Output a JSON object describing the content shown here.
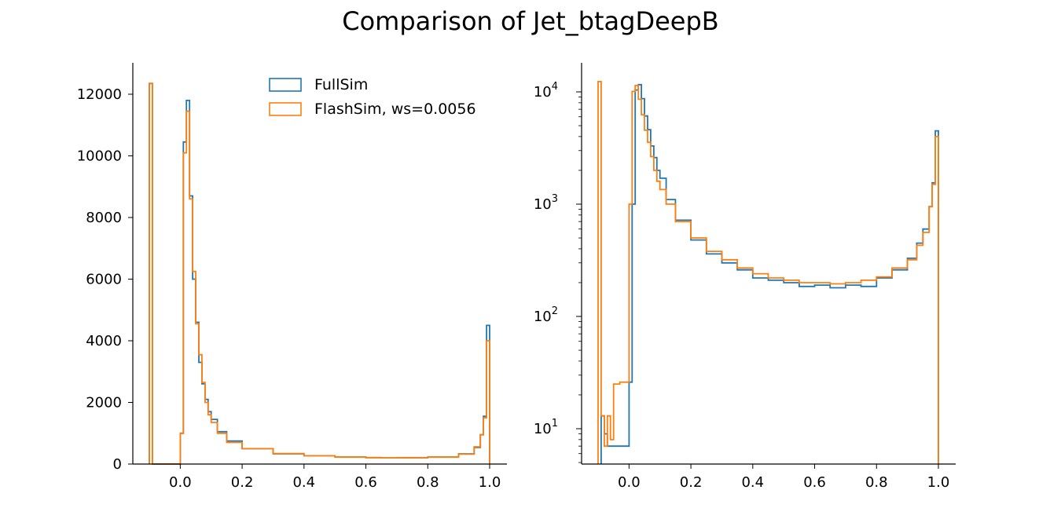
{
  "figure_title": "Comparison of Jet_btagDeepB",
  "colors": {
    "fullsim": "#1f77b4",
    "flashsim": "#ff7f0e"
  },
  "chart_data": [
    {
      "type": "histogram-step",
      "panel": "linear",
      "title": "",
      "xlabel": "",
      "ylabel": "",
      "xlim": [
        -0.1,
        1.0
      ],
      "ylim": [
        0,
        12400
      ],
      "xticks": [
        0.0,
        0.2,
        0.4,
        0.6,
        0.8,
        1.0
      ],
      "xtick_labels": [
        "0.0",
        "0.2",
        "0.4",
        "0.6",
        "0.8",
        "1.0"
      ],
      "yticks": [
        0,
        2000,
        4000,
        6000,
        8000,
        10000,
        12000
      ],
      "ytick_labels": [
        "0",
        "2000",
        "4000",
        "6000",
        "8000",
        "10000",
        "12000"
      ],
      "legend_position": "top-right",
      "series": [
        {
          "name": "FullSim",
          "key": "fullsim",
          "x": [
            -0.1,
            -0.09,
            0.0,
            0.01,
            0.02,
            0.03,
            0.04,
            0.05,
            0.06,
            0.07,
            0.08,
            0.09,
            0.1,
            0.12,
            0.15,
            0.2,
            0.3,
            0.4,
            0.5,
            0.6,
            0.65,
            0.7,
            0.8,
            0.9,
            0.95,
            0.97,
            0.98,
            0.99,
            1.0
          ],
          "y": [
            12350,
            0,
            1000,
            10450,
            11800,
            8700,
            6000,
            4600,
            3300,
            2600,
            2100,
            1700,
            1450,
            1050,
            750,
            500,
            330,
            270,
            230,
            210,
            200,
            205,
            230,
            330,
            540,
            950,
            1550,
            4500,
            0
          ]
        },
        {
          "name": "FlashSim, ws=0.0056",
          "key": "flashsim",
          "x": [
            -0.1,
            -0.09,
            0.0,
            0.01,
            0.02,
            0.03,
            0.04,
            0.05,
            0.06,
            0.07,
            0.08,
            0.09,
            0.1,
            0.12,
            0.15,
            0.2,
            0.3,
            0.4,
            0.5,
            0.6,
            0.65,
            0.7,
            0.8,
            0.9,
            0.95,
            0.97,
            0.98,
            0.99,
            1.0
          ],
          "y": [
            12350,
            0,
            1000,
            10100,
            11450,
            8600,
            6250,
            4550,
            3550,
            2650,
            2000,
            1600,
            1350,
            1000,
            700,
            500,
            340,
            270,
            225,
            210,
            200,
            210,
            225,
            320,
            560,
            950,
            1500,
            4000,
            0
          ]
        }
      ]
    },
    {
      "type": "histogram-step",
      "panel": "log",
      "title": "",
      "xlabel": "",
      "ylabel": "",
      "yscale": "log",
      "xlim": [
        -0.1,
        1.0
      ],
      "ylim": [
        5,
        20000
      ],
      "xticks": [
        0.0,
        0.2,
        0.4,
        0.6,
        0.8,
        1.0
      ],
      "xtick_labels": [
        "0.0",
        "0.2",
        "0.4",
        "0.6",
        "0.8",
        "1.0"
      ],
      "yticks": [
        10,
        100,
        1000,
        10000
      ],
      "ytick_labels": [
        {
          "base": "10",
          "exp": "1"
        },
        {
          "base": "10",
          "exp": "2"
        },
        {
          "base": "10",
          "exp": "3"
        },
        {
          "base": "10",
          "exp": "4"
        }
      ],
      "series": [
        {
          "name": "FullSim",
          "key": "fullsim",
          "x": [
            -0.09,
            -0.08,
            -0.07,
            0.0,
            0.01,
            0.02,
            0.03,
            0.04,
            0.05,
            0.06,
            0.07,
            0.08,
            0.09,
            0.1,
            0.12,
            0.15,
            0.2,
            0.25,
            0.3,
            0.35,
            0.4,
            0.45,
            0.5,
            0.55,
            0.6,
            0.65,
            0.7,
            0.75,
            0.8,
            0.85,
            0.9,
            0.93,
            0.95,
            0.97,
            0.98,
            0.99,
            1.0
          ],
          "y": [
            13,
            9,
            7,
            26,
            1000,
            10400,
            11600,
            8700,
            6100,
            4600,
            3300,
            2600,
            2000,
            1700,
            1100,
            720,
            480,
            360,
            300,
            260,
            220,
            210,
            200,
            185,
            190,
            180,
            190,
            185,
            220,
            260,
            330,
            450,
            600,
            950,
            1550,
            4500,
            0
          ]
        },
        {
          "name": "FlashSim, ws=0.0056",
          "key": "flashsim",
          "x": [
            -0.1,
            -0.09,
            -0.08,
            -0.07,
            -0.06,
            -0.05,
            -0.04,
            -0.03,
            0.0,
            0.01,
            0.02,
            0.03,
            0.04,
            0.05,
            0.06,
            0.07,
            0.08,
            0.09,
            0.1,
            0.12,
            0.15,
            0.2,
            0.25,
            0.3,
            0.35,
            0.4,
            0.45,
            0.5,
            0.55,
            0.6,
            0.65,
            0.7,
            0.75,
            0.8,
            0.85,
            0.9,
            0.93,
            0.95,
            0.97,
            0.98,
            0.99,
            1.0
          ],
          "y": [
            12350,
            13,
            7,
            13,
            8,
            25,
            25,
            26,
            1000,
            10100,
            11400,
            8600,
            6250,
            4550,
            3550,
            2650,
            2000,
            1600,
            1350,
            1000,
            700,
            500,
            380,
            320,
            270,
            240,
            220,
            210,
            200,
            200,
            195,
            200,
            210,
            225,
            270,
            320,
            430,
            560,
            950,
            1500,
            4000,
            0
          ]
        }
      ]
    }
  ]
}
